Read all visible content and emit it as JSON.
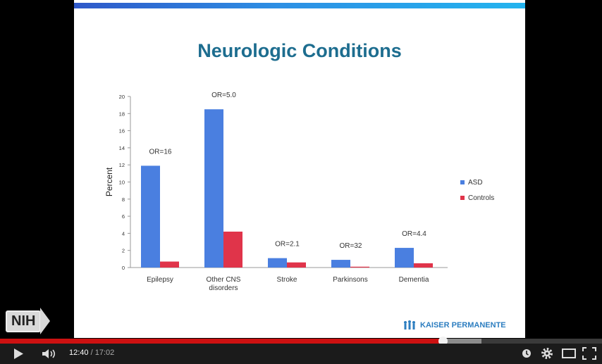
{
  "slide": {
    "title": "Neurologic Conditions",
    "logo_text": "KAISER PERMANENTE",
    "watermark_logo": "NIH"
  },
  "chart_data": {
    "type": "bar",
    "categories": [
      "Epilepsy",
      "Other CNS disorders",
      "Stroke",
      "Parkinsons",
      "Dementia"
    ],
    "category_lines": [
      [
        "Epilepsy"
      ],
      [
        "Other CNS",
        "disorders"
      ],
      [
        "Stroke"
      ],
      [
        "Parkinsons"
      ],
      [
        "Dementia"
      ]
    ],
    "series": [
      {
        "name": "ASD",
        "values": [
          11.9,
          18.5,
          1.1,
          0.9,
          2.3
        ],
        "color": "#4a7fe0"
      },
      {
        "name": "Controls",
        "values": [
          0.7,
          4.2,
          0.6,
          0.1,
          0.5
        ],
        "color": "#e0344a"
      }
    ],
    "annotations": [
      "OR=16",
      "OR=5.0",
      "OR=2.1",
      "OR=32",
      "OR=4.4"
    ],
    "ylabel": "Percent",
    "xlabel": "",
    "ylim": [
      0,
      20
    ],
    "yticks": [
      0,
      2,
      4,
      6,
      8,
      10,
      12,
      14,
      16,
      18,
      20
    ],
    "legend_position": "right",
    "grid": false
  },
  "player": {
    "current_time": "12:40",
    "separator": " / ",
    "duration": "17:02",
    "played_fraction": 0.735,
    "loaded_fraction": 0.8,
    "icons": [
      "play-icon",
      "volume-icon",
      "watch-later-icon",
      "settings-icon",
      "theater-mode-icon",
      "fullscreen-icon"
    ]
  }
}
